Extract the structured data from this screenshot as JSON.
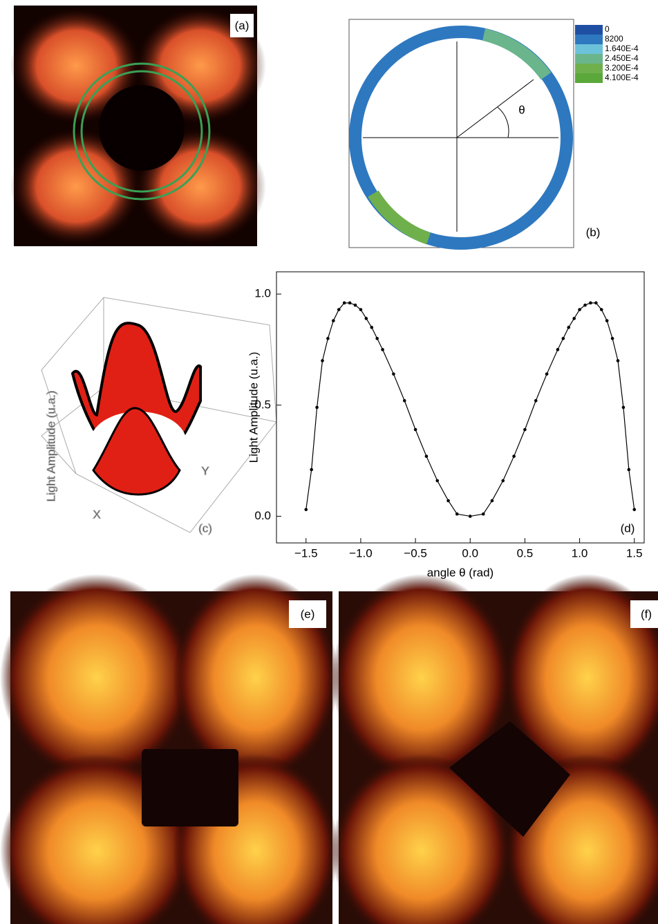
{
  "panels": {
    "a": {
      "label": "(a)"
    },
    "b": {
      "label": "(b)",
      "angle_label": "θ",
      "legend": [
        {
          "text": "0",
          "color": "#1f4fa3"
        },
        {
          "text": "8200",
          "color": "#2e78c0"
        },
        {
          "text": "1.640E-4",
          "color": "#6cc2d8"
        },
        {
          "text": "2.450E-4",
          "color": "#6ab58c"
        },
        {
          "text": "3.200E-4",
          "color": "#6fb04c"
        },
        {
          "text": "4.100E-4",
          "color": "#5aa83a"
        }
      ]
    },
    "c": {
      "label": "(c)",
      "z_label": "Light Amplitude (u.a.)",
      "x_label": "X",
      "y_label": "Y"
    },
    "e": {
      "label": "(e)"
    },
    "f": {
      "label": "(f)"
    }
  },
  "chart_data": {
    "type": "line",
    "panel_label": "(d)",
    "x_label": "angle θ (rad)",
    "y_label": "Light Amplitude (u.a.)",
    "x": [
      -1.5,
      -1.45,
      -1.4,
      -1.35,
      -1.3,
      -1.25,
      -1.2,
      -1.15,
      -1.1,
      -1.05,
      -1.0,
      -0.95,
      -0.9,
      -0.85,
      -0.8,
      -0.7,
      -0.6,
      -0.5,
      -0.4,
      -0.3,
      -0.2,
      -0.12,
      0,
      0.12,
      0.2,
      0.3,
      0.4,
      0.5,
      0.6,
      0.7,
      0.8,
      0.85,
      0.9,
      0.95,
      1.0,
      1.05,
      1.1,
      1.15,
      1.2,
      1.25,
      1.3,
      1.35,
      1.4,
      1.45,
      1.5
    ],
    "values": [
      0.03,
      0.21,
      0.49,
      0.7,
      0.8,
      0.88,
      0.93,
      0.96,
      0.96,
      0.95,
      0.93,
      0.89,
      0.85,
      0.8,
      0.75,
      0.64,
      0.52,
      0.39,
      0.27,
      0.16,
      0.07,
      0.01,
      0.0,
      0.01,
      0.07,
      0.16,
      0.27,
      0.39,
      0.52,
      0.64,
      0.75,
      0.8,
      0.85,
      0.89,
      0.93,
      0.95,
      0.96,
      0.96,
      0.93,
      0.88,
      0.8,
      0.7,
      0.49,
      0.21,
      0.03
    ],
    "color": "#000000",
    "xlim": [
      -1.77,
      1.59
    ],
    "ylim": [
      -0.12,
      1.1
    ],
    "xticks": [
      {
        "value": -1.5,
        "label": "−1.5"
      },
      {
        "value": -1.0,
        "label": "−1.0"
      },
      {
        "value": -0.5,
        "label": "−0.5"
      },
      {
        "value": 0,
        "label": "0.0"
      },
      0.5,
      {
        "value": 1.0,
        "label": "1.0"
      },
      1.5
    ],
    "yticks": [
      {
        "value": 0,
        "label": "0.0"
      },
      0.5,
      {
        "value": 1.0,
        "label": "1.0"
      }
    ]
  }
}
